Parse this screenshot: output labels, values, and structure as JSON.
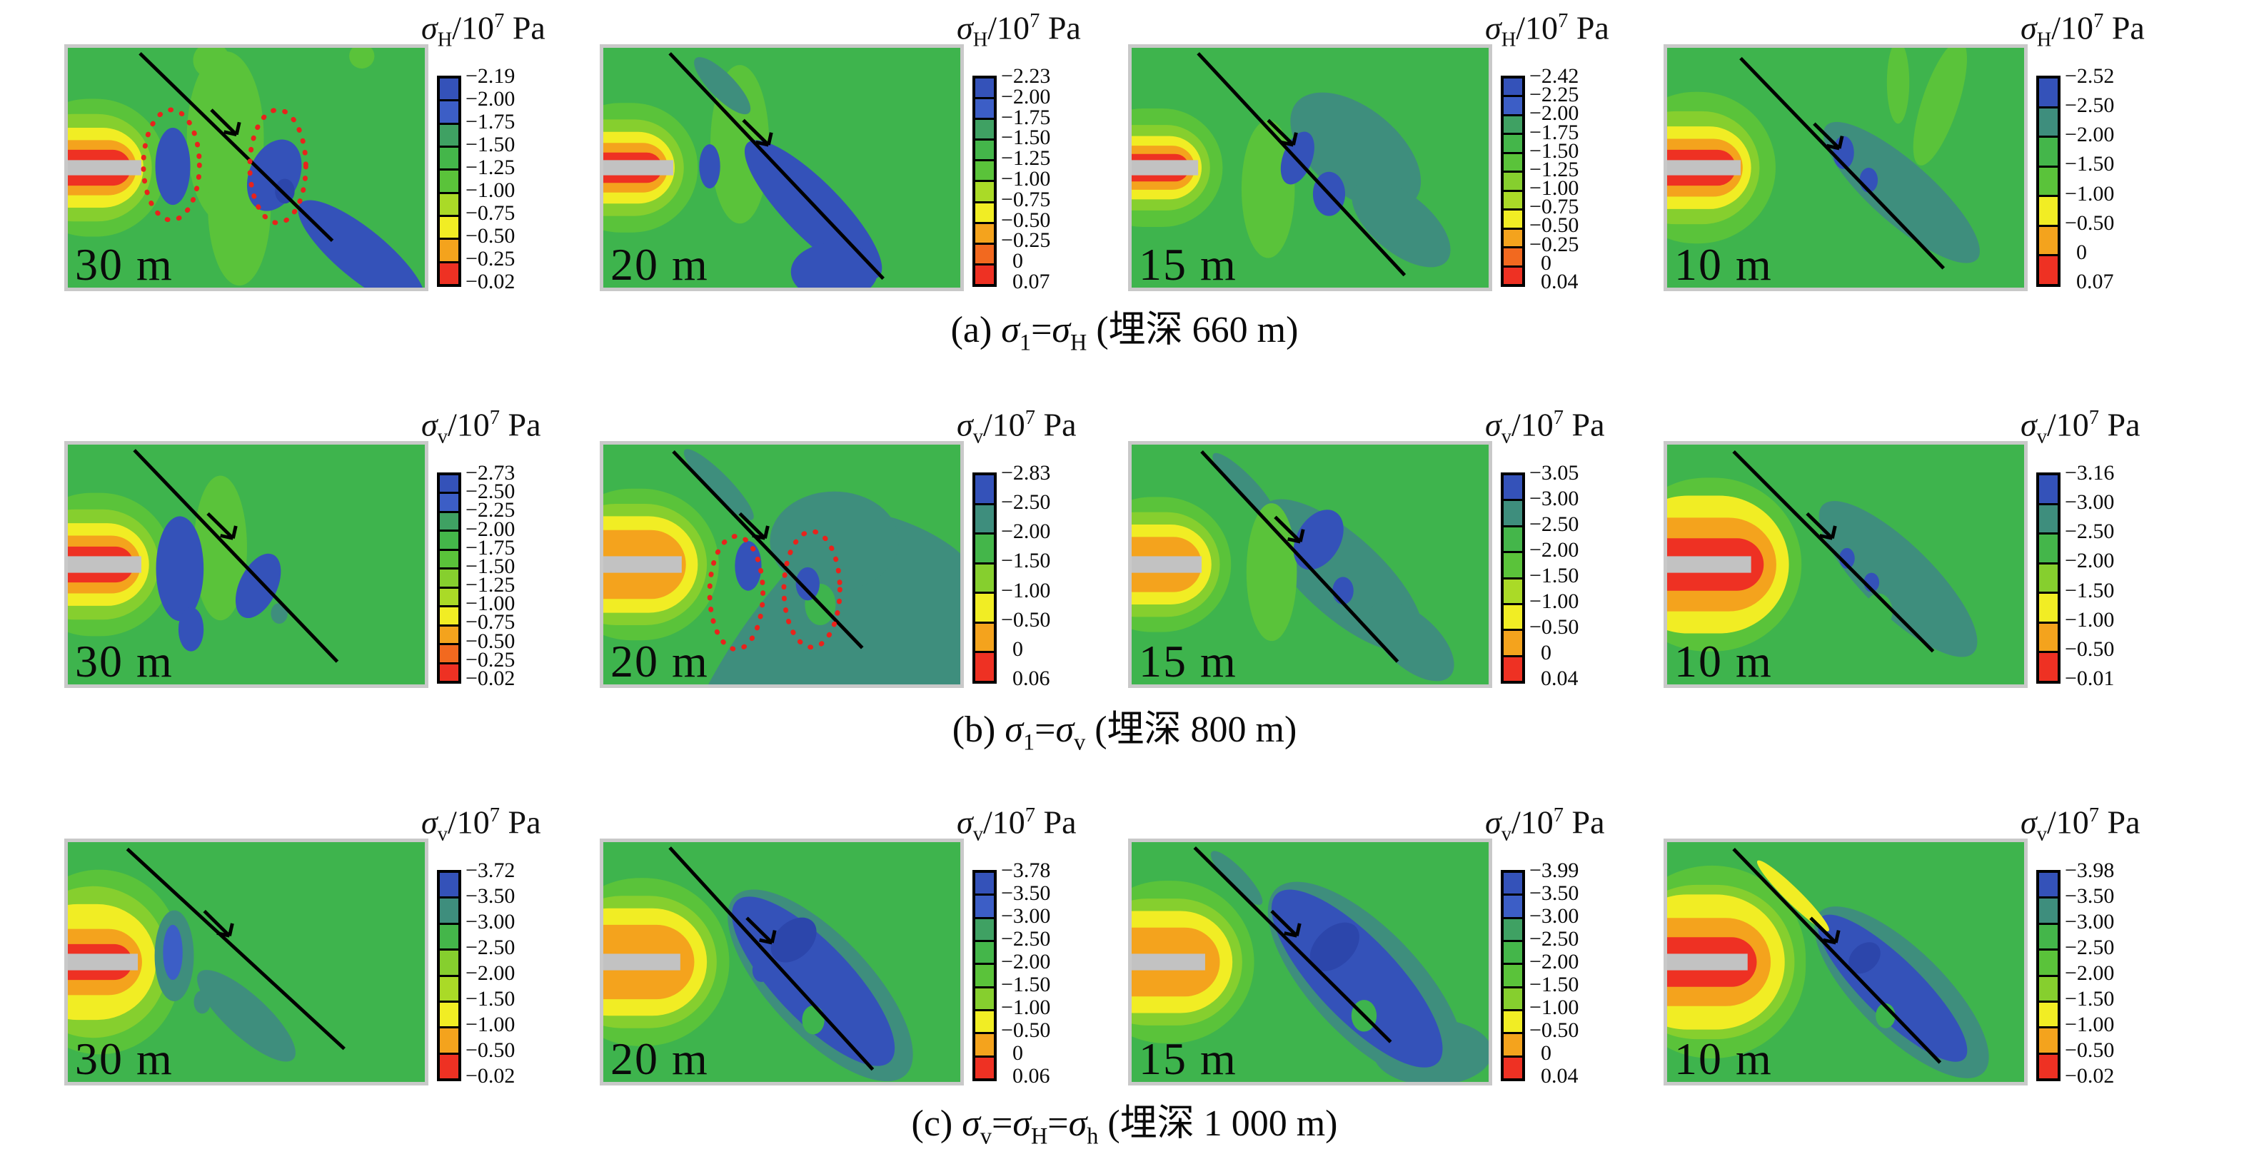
{
  "figure": {
    "description_labels": {
      "unit_scale": "/10",
      "unit_exponent": "7",
      "unit": " Pa"
    },
    "palette": {
      "background_green": "#3eb44d",
      "light_green": "#5ac33a",
      "yellow_green": "#86cf2e",
      "legend_light_green": "#aada27",
      "yellow": "#f1ed24",
      "orange": "#f4a31d",
      "deep_orange": "#f2691f",
      "red": "#ee3123",
      "teal": "#3e8e7d",
      "teal_green": "#3fa163",
      "blue": "#3452b9",
      "blue_light": "#3c5ec6",
      "dark_blue": "#2c46ab",
      "tunnel_gray": "#c2c2c2",
      "highlight_red_dotted": "#e8231c",
      "fault_black": "#000000"
    },
    "rows": [
      {
        "id": "a",
        "caption_parts": [
          {
            "t": "(a) "
          },
          {
            "s": "σ",
            "sub": "1"
          },
          {
            "t": "="
          },
          {
            "s": "σ",
            "sub": "H"
          },
          {
            "t": " (埋深 660 m)"
          }
        ],
        "panels": [
          {
            "distance": "30 m",
            "title_parts": [
              {
                "s": "σ",
                "sub": "H"
              },
              {
                "t": "/10"
              },
              {
                "sup": "7"
              },
              {
                "t": " Pa"
              }
            ],
            "legend": {
              "cells": [
                "#3452b9",
                "#3c5ec6",
                "#3fa163",
                "#44b64a",
                "#5ac33a",
                "#aada27",
                "#f1ed24",
                "#f4a31d",
                "#ee3123"
              ],
              "labels": [
                "−2.19",
                "−2.00",
                "−1.75",
                "−1.50",
                "−1.25",
                "−1.00",
                "−0.75",
                "−0.50",
                "−0.25",
                "−0.02"
              ]
            }
          },
          {
            "distance": "20 m",
            "title_parts": [
              {
                "s": "σ",
                "sub": "H"
              },
              {
                "t": "/10"
              },
              {
                "sup": "7"
              },
              {
                "t": " Pa"
              }
            ],
            "legend": {
              "cells": [
                "#3452b9",
                "#3c5ec6",
                "#3fa163",
                "#44b64a",
                "#5ac33a",
                "#aada27",
                "#f1ed24",
                "#f4a31d",
                "#f2691f",
                "#ee3123"
              ],
              "labels": [
                "−2.23",
                "−2.00",
                "−1.75",
                "−1.50",
                "−1.25",
                "−1.00",
                "−0.75",
                "−0.50",
                "−0.25",
                "0",
                "0.07"
              ]
            }
          },
          {
            "distance": "15 m",
            "title_parts": [
              {
                "s": "σ",
                "sub": "H"
              },
              {
                "t": "/10"
              },
              {
                "sup": "7"
              },
              {
                "t": " Pa"
              }
            ],
            "legend": {
              "cells": [
                "#3452b9",
                "#3c5ec6",
                "#3fa163",
                "#44b64a",
                "#5ac33a",
                "#86cf2e",
                "#aada27",
                "#f1ed24",
                "#f4a31d",
                "#f2691f",
                "#ee3123"
              ],
              "labels": [
                "−2.42",
                "−2.25",
                "−2.00",
                "−1.75",
                "−1.50",
                "−1.25",
                "−1.00",
                "−0.75",
                "−0.50",
                "−0.25",
                "0",
                "0.04"
              ]
            }
          },
          {
            "distance": "10 m",
            "title_parts": [
              {
                "s": "σ",
                "sub": "H"
              },
              {
                "t": "/10"
              },
              {
                "sup": "7"
              },
              {
                "t": " Pa"
              }
            ],
            "legend": {
              "cells": [
                "#3452b9",
                "#3e8e7d",
                "#44b64a",
                "#5ac33a",
                "#f1ed24",
                "#f4a31d",
                "#ee3123"
              ],
              "labels": [
                "−2.52",
                "−2.50",
                "−2.00",
                "−1.50",
                "−1.00",
                "−0.50",
                "0",
                "0.07"
              ]
            }
          }
        ]
      },
      {
        "id": "b",
        "caption_parts": [
          {
            "t": "(b) "
          },
          {
            "s": "σ",
            "sub": "1"
          },
          {
            "t": "="
          },
          {
            "s": "σ",
            "sub": "v"
          },
          {
            "t": " (埋深 800 m)"
          }
        ],
        "panels": [
          {
            "distance": "30 m",
            "title_parts": [
              {
                "s": "σ",
                "sub": "v"
              },
              {
                "t": "/10"
              },
              {
                "sup": "7"
              },
              {
                "t": " Pa"
              }
            ],
            "legend": {
              "cells": [
                "#3452b9",
                "#3c5ec6",
                "#3fa163",
                "#44b64a",
                "#5ac33a",
                "#86cf2e",
                "#aada27",
                "#f1ed24",
                "#f4a31d",
                "#f2691f",
                "#ee3123"
              ],
              "labels": [
                "−2.73",
                "−2.50",
                "−2.25",
                "−2.00",
                "−1.75",
                "−1.50",
                "−1.25",
                "−1.00",
                "−0.75",
                "−0.50",
                "−0.25",
                "−0.02"
              ]
            }
          },
          {
            "distance": "20 m",
            "title_parts": [
              {
                "s": "σ",
                "sub": "v"
              },
              {
                "t": "/10"
              },
              {
                "sup": "7"
              },
              {
                "t": " Pa"
              }
            ],
            "legend": {
              "cells": [
                "#3452b9",
                "#3e8e7d",
                "#44b64a",
                "#86cf2e",
                "#f1ed24",
                "#f4a31d",
                "#ee3123"
              ],
              "labels": [
                "−2.83",
                "−2.50",
                "−2.00",
                "−1.50",
                "−1.00",
                "−0.50",
                "0",
                "0.06"
              ]
            }
          },
          {
            "distance": "15 m",
            "title_parts": [
              {
                "s": "σ",
                "sub": "v"
              },
              {
                "t": "/10"
              },
              {
                "sup": "7"
              },
              {
                "t": " Pa"
              }
            ],
            "legend": {
              "cells": [
                "#3452b9",
                "#3e8e7d",
                "#44b64a",
                "#5ac33a",
                "#aada27",
                "#f1ed24",
                "#f4a31d",
                "#ee3123"
              ],
              "labels": [
                "−3.05",
                "−3.00",
                "−2.50",
                "−2.00",
                "−1.50",
                "−1.00",
                "−0.50",
                "0",
                "0.04"
              ]
            }
          },
          {
            "distance": "10 m",
            "title_parts": [
              {
                "s": "σ",
                "sub": "v"
              },
              {
                "t": "/10"
              },
              {
                "sup": "7"
              },
              {
                "t": " Pa"
              }
            ],
            "legend": {
              "cells": [
                "#3452b9",
                "#3e8e7d",
                "#44b64a",
                "#86cf2e",
                "#f1ed24",
                "#f4a31d",
                "#ee3123"
              ],
              "labels": [
                "−3.16",
                "−3.00",
                "−2.50",
                "−2.00",
                "−1.50",
                "−1.00",
                "−0.50",
                "−0.01"
              ]
            }
          }
        ]
      },
      {
        "id": "c",
        "caption_parts": [
          {
            "t": "(c) "
          },
          {
            "s": "σ",
            "sub": "v"
          },
          {
            "t": "="
          },
          {
            "s": "σ",
            "sub": "H"
          },
          {
            "t": "="
          },
          {
            "s": "σ",
            "sub": "h"
          },
          {
            "t": " (埋深 1 000 m)"
          }
        ],
        "panels": [
          {
            "distance": "30 m",
            "title_parts": [
              {
                "s": "σ",
                "sub": "v"
              },
              {
                "t": "/10"
              },
              {
                "sup": "7"
              },
              {
                "t": " Pa"
              }
            ],
            "legend": {
              "cells": [
                "#3452b9",
                "#3e8e7d",
                "#44b64a",
                "#86cf2e",
                "#aada27",
                "#f1ed24",
                "#f4a31d",
                "#ee3123"
              ],
              "labels": [
                "−3.72",
                "−3.50",
                "−3.00",
                "−2.50",
                "−2.00",
                "−1.50",
                "−1.00",
                "−0.50",
                "−0.02"
              ]
            }
          },
          {
            "distance": "20 m",
            "title_parts": [
              {
                "s": "σ",
                "sub": "v"
              },
              {
                "t": "/10"
              },
              {
                "sup": "7"
              },
              {
                "t": " Pa"
              }
            ],
            "legend": {
              "cells": [
                "#3452b9",
                "#3c5ec6",
                "#3fa163",
                "#44b64a",
                "#5ac33a",
                "#86cf2e",
                "#f1ed24",
                "#f4a31d",
                "#ee3123"
              ],
              "labels": [
                "−3.78",
                "−3.50",
                "−3.00",
                "−2.50",
                "−2.00",
                "−1.50",
                "−1.00",
                "−0.50",
                "0",
                "0.06"
              ]
            }
          },
          {
            "distance": "15 m",
            "title_parts": [
              {
                "s": "σ",
                "sub": "v"
              },
              {
                "t": "/10"
              },
              {
                "sup": "7"
              },
              {
                "t": " Pa"
              }
            ],
            "legend": {
              "cells": [
                "#3452b9",
                "#3c5ec6",
                "#3fa163",
                "#44b64a",
                "#5ac33a",
                "#86cf2e",
                "#f1ed24",
                "#f4a31d",
                "#ee3123"
              ],
              "labels": [
                "−3.99",
                "−3.50",
                "−3.00",
                "−2.50",
                "−2.00",
                "−1.50",
                "−1.00",
                "−0.50",
                "0",
                "0.04"
              ]
            }
          },
          {
            "distance": "10 m",
            "title_parts": [
              {
                "s": "σ",
                "sub": "v"
              },
              {
                "t": "/10"
              },
              {
                "sup": "7"
              },
              {
                "t": " Pa"
              }
            ],
            "legend": {
              "cells": [
                "#3452b9",
                "#3e8e7d",
                "#44b64a",
                "#5ac33a",
                "#86cf2e",
                "#f1ed24",
                "#f4a31d",
                "#ee3123"
              ],
              "labels": [
                "−3.98",
                "−3.50",
                "−3.00",
                "−2.50",
                "−2.00",
                "−1.50",
                "−1.00",
                "−0.50",
                "−0.02"
              ]
            }
          }
        ]
      }
    ]
  },
  "chart_data": [
    {
      "type": "contour-heatmap",
      "row": "a",
      "condition": "σ1=σH",
      "depth_m": 660,
      "fault_distance": "30 m",
      "variable": "σH/10^7 Pa",
      "levels": [
        -2.19,
        -2.0,
        -1.75,
        -1.5,
        -1.25,
        -1.0,
        -0.75,
        -0.5,
        -0.25,
        -0.02
      ],
      "annotations": [
        "fault line with slip arrow",
        "two red dotted ellipses highlighting blue low-stress zones",
        "tunnel entering from left"
      ]
    },
    {
      "type": "contour-heatmap",
      "row": "a",
      "condition": "σ1=σH",
      "depth_m": 660,
      "fault_distance": "20 m",
      "variable": "σH/10^7 Pa",
      "levels": [
        -2.23,
        -2.0,
        -1.75,
        -1.5,
        -1.25,
        -1.0,
        -0.75,
        -0.5,
        -0.25,
        0,
        0.07
      ],
      "annotations": [
        "fault line with slip arrow",
        "tunnel entering from left"
      ]
    },
    {
      "type": "contour-heatmap",
      "row": "a",
      "condition": "σ1=σH",
      "depth_m": 660,
      "fault_distance": "15 m",
      "variable": "σH/10^7 Pa",
      "levels": [
        -2.42,
        -2.25,
        -2.0,
        -1.75,
        -1.5,
        -1.25,
        -1.0,
        -0.75,
        -0.5,
        -0.25,
        0,
        0.04
      ],
      "annotations": [
        "fault line with slip arrow",
        "tunnel entering from left"
      ]
    },
    {
      "type": "contour-heatmap",
      "row": "a",
      "condition": "σ1=σH",
      "depth_m": 660,
      "fault_distance": "10 m",
      "variable": "σH/10^7 Pa",
      "levels": [
        -2.52,
        -2.5,
        -2.0,
        -1.5,
        -1.0,
        -0.5,
        0,
        0.07
      ],
      "annotations": [
        "fault line with slip arrow",
        "tunnel entering from left"
      ]
    },
    {
      "type": "contour-heatmap",
      "row": "b",
      "condition": "σ1=σv",
      "depth_m": 800,
      "fault_distance": "30 m",
      "variable": "σv/10^7 Pa",
      "levels": [
        -2.73,
        -2.5,
        -2.25,
        -2.0,
        -1.75,
        -1.5,
        -1.25,
        -1.0,
        -0.75,
        -0.5,
        -0.25,
        -0.02
      ],
      "annotations": [
        "fault line with slip arrow",
        "tunnel entering from left"
      ]
    },
    {
      "type": "contour-heatmap",
      "row": "b",
      "condition": "σ1=σv",
      "depth_m": 800,
      "fault_distance": "20 m",
      "variable": "σv/10^7 Pa",
      "levels": [
        -2.83,
        -2.5,
        -2.0,
        -1.5,
        -1.0,
        -0.5,
        0,
        0.06
      ],
      "annotations": [
        "fault line with slip arrow",
        "two red dotted ellipses highlighting blue low-stress zones",
        "tunnel entering from left"
      ]
    },
    {
      "type": "contour-heatmap",
      "row": "b",
      "condition": "σ1=σv",
      "depth_m": 800,
      "fault_distance": "15 m",
      "variable": "σv/10^7 Pa",
      "levels": [
        -3.05,
        -3.0,
        -2.5,
        -2.0,
        -1.5,
        -1.0,
        -0.5,
        0,
        0.04
      ],
      "annotations": [
        "fault line with slip arrow",
        "tunnel entering from left"
      ]
    },
    {
      "type": "contour-heatmap",
      "row": "b",
      "condition": "σ1=σv",
      "depth_m": 800,
      "fault_distance": "10 m",
      "variable": "σv/10^7 Pa",
      "levels": [
        -3.16,
        -3.0,
        -2.5,
        -2.0,
        -1.5,
        -1.0,
        -0.5,
        -0.01
      ],
      "annotations": [
        "fault line with slip arrow",
        "tunnel entering from left"
      ]
    },
    {
      "type": "contour-heatmap",
      "row": "c",
      "condition": "σv=σH=σh",
      "depth_m": 1000,
      "fault_distance": "30 m",
      "variable": "σv/10^7 Pa",
      "levels": [
        -3.72,
        -3.5,
        -3.0,
        -2.5,
        -2.0,
        -1.5,
        -1.0,
        -0.5,
        -0.02
      ],
      "annotations": [
        "fault line with slip arrow",
        "tunnel entering from left"
      ]
    },
    {
      "type": "contour-heatmap",
      "row": "c",
      "condition": "σv=σH=σh",
      "depth_m": 1000,
      "fault_distance": "20 m",
      "variable": "σv/10^7 Pa",
      "levels": [
        -3.78,
        -3.5,
        -3.0,
        -2.5,
        -2.0,
        -1.5,
        -1.0,
        -0.5,
        0,
        0.06
      ],
      "annotations": [
        "fault line with slip arrow",
        "tunnel entering from left"
      ]
    },
    {
      "type": "contour-heatmap",
      "row": "c",
      "condition": "σv=σH=σh",
      "depth_m": 1000,
      "fault_distance": "15 m",
      "variable": "σv/10^7 Pa",
      "levels": [
        -3.99,
        -3.5,
        -3.0,
        -2.5,
        -2.0,
        -1.5,
        -1.0,
        -0.5,
        0,
        0.04
      ],
      "annotations": [
        "fault line with slip arrow",
        "tunnel entering from left"
      ]
    },
    {
      "type": "contour-heatmap",
      "row": "c",
      "condition": "σv=σH=σh",
      "depth_m": 1000,
      "fault_distance": "10 m",
      "variable": "σv/10^7 Pa",
      "levels": [
        -3.98,
        -3.5,
        -3.0,
        -2.5,
        -2.0,
        -1.5,
        -1.0,
        -0.5,
        -0.02
      ],
      "annotations": [
        "fault line with slip arrow",
        "tunnel entering from left"
      ]
    }
  ]
}
